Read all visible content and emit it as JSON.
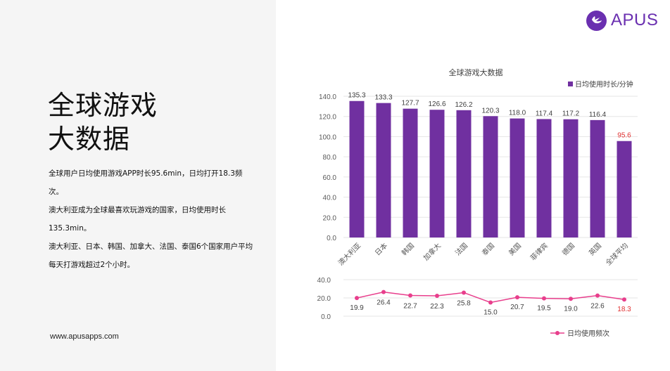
{
  "page": {
    "title_line1": "全球游戏",
    "title_line2": "大数据",
    "paragraphs": [
      "全球用户日均使用游戏APP时长95.6min，日均打开18.3频次。",
      "澳大利亚成为全球最喜欢玩游戏的国家，日均使用时长135.3min。",
      "澳大利亚、日本、韩国、加拿大、法国、泰国6个国家用户平均每天打游戏超过2个小时。"
    ],
    "website": "www.apusapps.com"
  },
  "brand": {
    "name": "APUS",
    "icon": "apus-bird-logo-icon",
    "color": "#6a2fb0"
  },
  "colors": {
    "bar": "#7030a0",
    "line": "#e83e8c",
    "highlight": "#e03030",
    "axis_text": "#595959",
    "grid": "#e6e6e6"
  },
  "chart_data": [
    {
      "type": "bar",
      "title": "全球游戏大数据",
      "legend": "日均使用时长/分钟",
      "legend_position": "top-right",
      "categories": [
        "澳大利亚",
        "日本",
        "韩国",
        "加拿大",
        "法国",
        "泰国",
        "美国",
        "菲律宾",
        "德国",
        "英国",
        "全球平均"
      ],
      "values": [
        135.3,
        133.3,
        127.7,
        126.6,
        126.2,
        120.3,
        118.0,
        117.4,
        117.2,
        116.4,
        95.6
      ],
      "value_labels": [
        "135.3",
        "133.3",
        "127.7",
        "126.6",
        "126.2",
        "120.3",
        "118.0",
        "117.4",
        "117.2",
        "116.4",
        "95.6"
      ],
      "yticks": [
        "0.0",
        "20.0",
        "40.0",
        "60.0",
        "80.0",
        "100.0",
        "120.0",
        "140.0"
      ],
      "ylim": [
        0,
        140
      ],
      "grid": true,
      "highlight_index": 10
    },
    {
      "type": "line",
      "legend": "日均使用频次",
      "legend_position": "bottom-right",
      "categories": [
        "澳大利亚",
        "日本",
        "韩国",
        "加拿大",
        "法国",
        "泰国",
        "美国",
        "菲律宾",
        "德国",
        "英国",
        "全球平均"
      ],
      "values": [
        19.9,
        26.4,
        22.7,
        22.3,
        25.8,
        15.0,
        20.7,
        19.5,
        19.0,
        22.6,
        18.3
      ],
      "value_labels": [
        "19.9",
        "26.4",
        "22.7",
        "22.3",
        "25.8",
        "15.0",
        "20.7",
        "19.5",
        "19.0",
        "22.6",
        "18.3"
      ],
      "yticks": [
        "0.0",
        "20.0",
        "40.0"
      ],
      "ylim": [
        0,
        40
      ],
      "grid": true,
      "highlight_index": 10
    }
  ]
}
